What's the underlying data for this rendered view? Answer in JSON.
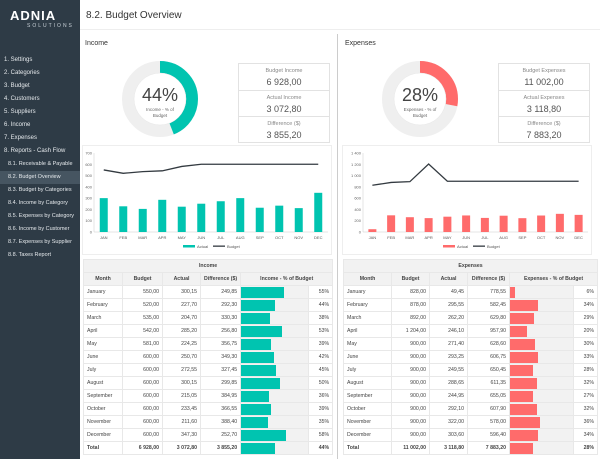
{
  "app": {
    "logo": "ADNIA",
    "logo_sub": "SOLUTIONS",
    "page_title": "8.2. Budget Overview"
  },
  "sidebar": {
    "items": [
      {
        "label": "1. Settings",
        "sub": false
      },
      {
        "label": "2. Categories",
        "sub": false
      },
      {
        "label": "3. Budget",
        "sub": false
      },
      {
        "label": "4. Customers",
        "sub": false
      },
      {
        "label": "5. Suppliers",
        "sub": false
      },
      {
        "label": "6. Income",
        "sub": false
      },
      {
        "label": "7. Expenses",
        "sub": false
      },
      {
        "label": "8. Reports - Cash Flow",
        "sub": false
      },
      {
        "label": "8.1. Receivable & Payable",
        "sub": true
      },
      {
        "label": "8.2. Budget Overview",
        "sub": true,
        "active": true
      },
      {
        "label": "8.3. Budget by Categories",
        "sub": true
      },
      {
        "label": "8.4. Income by Category",
        "sub": true
      },
      {
        "label": "8.5. Expenses by Category",
        "sub": true
      },
      {
        "label": "8.6. Income by Customer",
        "sub": true
      },
      {
        "label": "8.7. Expenses by Supplier",
        "sub": true
      },
      {
        "label": "8.8. Taxes Report",
        "sub": true
      }
    ]
  },
  "colors": {
    "income": "#00c4b0",
    "expenses": "#ff6b6b",
    "budget_line": "#333a40",
    "sidebar": "#2e3b46"
  },
  "income": {
    "title": "Income",
    "percent": "44%",
    "percent_value": 44,
    "donut_label": "Income - % of Budget",
    "kpis": [
      {
        "label": "Budget Income",
        "value": "6 928,00"
      },
      {
        "label": "Actual Income",
        "value": "3 072,80"
      },
      {
        "label": "Difference ($)",
        "value": "3 855,20"
      }
    ],
    "table": {
      "title": "Income",
      "headers": [
        "Month",
        "Budget",
        "Actual",
        "Difference ($)",
        "Income - % of Budget"
      ],
      "rows": [
        [
          "January",
          "550,00",
          "300,15",
          "249,85",
          55
        ],
        [
          "February",
          "520,00",
          "227,70",
          "292,30",
          44
        ],
        [
          "March",
          "535,00",
          "204,70",
          "330,30",
          38
        ],
        [
          "April",
          "542,00",
          "285,20",
          "256,80",
          53
        ],
        [
          "May",
          "581,00",
          "224,25",
          "356,75",
          39
        ],
        [
          "June",
          "600,00",
          "250,70",
          "349,30",
          42
        ],
        [
          "July",
          "600,00",
          "272,55",
          "327,45",
          45
        ],
        [
          "August",
          "600,00",
          "300,15",
          "299,85",
          50
        ],
        [
          "September",
          "600,00",
          "215,05",
          "384,95",
          36
        ],
        [
          "October",
          "600,00",
          "233,45",
          "366,55",
          39
        ],
        [
          "November",
          "600,00",
          "211,60",
          "388,40",
          35
        ],
        [
          "December",
          "600,00",
          "347,30",
          "252,70",
          58
        ]
      ],
      "total": [
        "Total",
        "6 928,00",
        "3 072,80",
        "3 855,20",
        44
      ]
    }
  },
  "expenses": {
    "title": "Expenses",
    "percent": "28%",
    "percent_value": 28,
    "donut_label": "Expenses - % of Budget",
    "kpis": [
      {
        "label": "Budget Expenses",
        "value": "11 002,00"
      },
      {
        "label": "Actual Expenses",
        "value": "3 118,80"
      },
      {
        "label": "Difference ($)",
        "value": "7 883,20"
      }
    ],
    "table": {
      "title": "Expenses",
      "headers": [
        "Month",
        "Budget",
        "Actual",
        "Difference ($)",
        "Expenses - % of Budget"
      ],
      "rows": [
        [
          "January",
          "828,00",
          "49,45",
          "778,55",
          6
        ],
        [
          "February",
          "878,00",
          "295,55",
          "582,45",
          34
        ],
        [
          "March",
          "892,00",
          "262,20",
          "629,80",
          29
        ],
        [
          "April",
          "1 204,00",
          "246,10",
          "957,90",
          20
        ],
        [
          "May",
          "900,00",
          "271,40",
          "628,60",
          30
        ],
        [
          "June",
          "900,00",
          "293,25",
          "606,75",
          33
        ],
        [
          "July",
          "900,00",
          "249,55",
          "650,45",
          28
        ],
        [
          "August",
          "900,00",
          "288,65",
          "611,35",
          32
        ],
        [
          "September",
          "900,00",
          "244,95",
          "655,05",
          27
        ],
        [
          "October",
          "900,00",
          "292,10",
          "607,90",
          32
        ],
        [
          "November",
          "900,00",
          "322,00",
          "578,00",
          36
        ],
        [
          "December",
          "900,00",
          "303,60",
          "596,40",
          34
        ]
      ],
      "total": [
        "Total",
        "11 002,00",
        "3 118,80",
        "7 883,20",
        28
      ]
    }
  },
  "chart_data": [
    {
      "type": "bar",
      "categories": [
        "JAN",
        "FEB",
        "MAR",
        "APR",
        "MAY",
        "JUN",
        "JUL",
        "AUG",
        "SEP",
        "OCT",
        "NOV",
        "DEC"
      ],
      "ylim": [
        0,
        700
      ],
      "yticks": [
        "0",
        "100",
        "200",
        "300",
        "400",
        "500",
        "600",
        "700"
      ],
      "legend": "bottom",
      "series": [
        {
          "name": "Actual",
          "type": "bar",
          "values": [
            300.15,
            227.7,
            204.7,
            285.2,
            224.25,
            250.7,
            272.55,
            300.15,
            215.05,
            233.45,
            211.6,
            347.3
          ]
        },
        {
          "name": "Budget",
          "type": "line",
          "values": [
            550,
            520,
            535,
            542,
            581,
            600,
            600,
            600,
            600,
            600,
            600,
            600
          ]
        }
      ]
    },
    {
      "type": "bar",
      "categories": [
        "JAN",
        "FEB",
        "MAR",
        "APR",
        "MAY",
        "JUN",
        "JUL",
        "AUG",
        "SEP",
        "OCT",
        "NOV",
        "DEC"
      ],
      "ylim": [
        0,
        1400
      ],
      "yticks": [
        "0",
        "200",
        "400",
        "600",
        "800",
        "1 000",
        "1 200",
        "1 400"
      ],
      "legend": "bottom",
      "series": [
        {
          "name": "Actual",
          "type": "bar",
          "values": [
            49.45,
            295.55,
            262.2,
            246.1,
            271.4,
            293.25,
            249.55,
            288.65,
            244.95,
            292.1,
            322,
            303.6
          ]
        },
        {
          "name": "Budget",
          "type": "line",
          "values": [
            828,
            878,
            892,
            1204,
            900,
            900,
            900,
            900,
            900,
            900,
            900,
            900
          ]
        }
      ]
    }
  ]
}
